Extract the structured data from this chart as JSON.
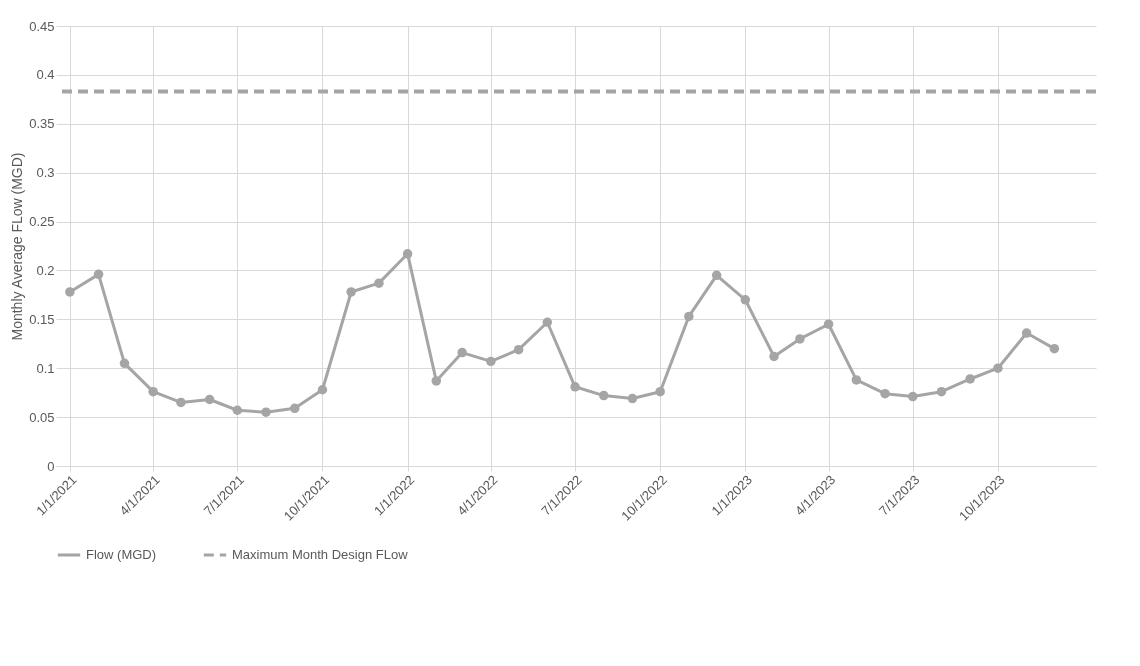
{
  "chart_data": {
    "type": "line",
    "ylabel": "Monthly Average FLow (MGD)",
    "x": [
      "2021-01-01",
      "2021-02-01",
      "2021-03-01",
      "2021-04-01",
      "2021-05-01",
      "2021-06-01",
      "2021-07-01",
      "2021-08-01",
      "2021-09-01",
      "2021-10-01",
      "2021-11-01",
      "2021-12-01",
      "2022-01-01",
      "2022-02-01",
      "2022-03-01",
      "2022-04-01",
      "2022-05-01",
      "2022-06-01",
      "2022-07-01",
      "2022-08-01",
      "2022-09-01",
      "2022-10-01",
      "2022-11-01",
      "2022-12-01",
      "2023-01-01",
      "2023-02-01",
      "2023-03-01",
      "2023-04-01",
      "2023-05-01",
      "2023-06-01",
      "2023-07-01",
      "2023-08-01",
      "2023-09-01",
      "2023-10-01",
      "2023-11-01",
      "2023-12-01"
    ],
    "series": [
      {
        "name": "Flow (MGD)",
        "color": "#a5a5a5",
        "values": [
          0.178,
          0.196,
          0.105,
          0.076,
          0.065,
          0.068,
          0.057,
          0.055,
          0.059,
          0.078,
          0.178,
          0.187,
          0.217,
          0.087,
          0.116,
          0.107,
          0.119,
          0.147,
          0.081,
          0.072,
          0.069,
          0.076,
          0.153,
          0.195,
          0.17,
          0.112,
          0.13,
          0.145,
          0.088,
          0.074,
          0.071,
          0.076,
          0.089,
          0.1,
          0.136,
          0.12
        ]
      }
    ],
    "ref_lines": [
      {
        "axis": "y",
        "value": 0.383,
        "label": "Maximum Month Design FLow",
        "color": "#a5a5a5",
        "line_style": "dashed"
      }
    ],
    "xlim": [
      "2020-12-17",
      "2024-01-15"
    ],
    "xticks": [
      {
        "value": "2021-01-01",
        "label": "1/1/2021"
      },
      {
        "value": "2021-04-01",
        "label": "4/1/2021"
      },
      {
        "value": "2021-07-01",
        "label": "7/1/2021"
      },
      {
        "value": "2021-10-01",
        "label": "10/1/2021"
      },
      {
        "value": "2022-01-01",
        "label": "1/1/2022"
      },
      {
        "value": "2022-04-01",
        "label": "4/1/2022"
      },
      {
        "value": "2022-07-01",
        "label": "7/1/2022"
      },
      {
        "value": "2022-10-01",
        "label": "10/1/2022"
      },
      {
        "value": "2023-01-01",
        "label": "1/1/2023"
      },
      {
        "value": "2023-04-01",
        "label": "4/1/2023"
      },
      {
        "value": "2023-07-01",
        "label": "7/1/2023"
      },
      {
        "value": "2023-10-01",
        "label": "10/1/2023"
      }
    ],
    "ylim": [
      0,
      0.45
    ],
    "yticks": [
      0,
      0.05,
      0.1,
      0.15,
      0.2,
      0.25,
      0.3,
      0.35,
      0.4,
      0.45
    ],
    "grid": true,
    "legend": "bottom",
    "marker": "circle",
    "line_style": "solid"
  }
}
